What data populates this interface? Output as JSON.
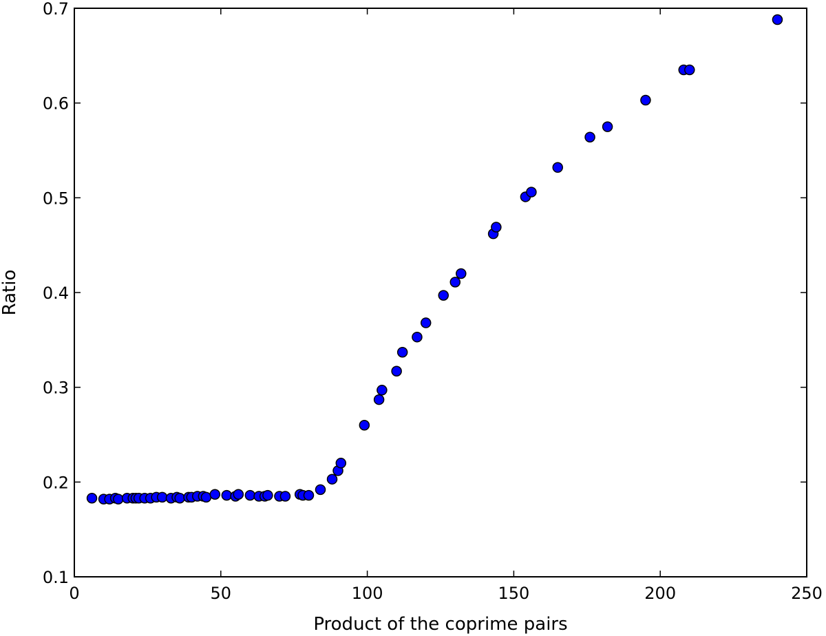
{
  "chart_data": {
    "type": "scatter",
    "title": "",
    "xlabel": "Product of the coprime pairs",
    "ylabel": "Ratio",
    "xlim": [
      0,
      250
    ],
    "ylim": [
      0.1,
      0.7
    ],
    "xticks": [
      0,
      50,
      100,
      150,
      200,
      250
    ],
    "yticks": [
      0.1,
      0.2,
      0.3,
      0.4,
      0.5,
      0.6,
      0.7
    ],
    "xtick_labels": [
      "0",
      "50",
      "100",
      "150",
      "200",
      "250"
    ],
    "ytick_labels": [
      "0.1",
      "0.2",
      "0.3",
      "0.4",
      "0.5",
      "0.6",
      "0.7"
    ],
    "grid": false,
    "marker_color": "#0000ff",
    "marker_edge_color": "#000000",
    "points": [
      {
        "x": 6,
        "y": 0.183
      },
      {
        "x": 10,
        "y": 0.182
      },
      {
        "x": 12,
        "y": 0.182
      },
      {
        "x": 14,
        "y": 0.183
      },
      {
        "x": 15,
        "y": 0.182
      },
      {
        "x": 18,
        "y": 0.183
      },
      {
        "x": 20,
        "y": 0.183
      },
      {
        "x": 21,
        "y": 0.183
      },
      {
        "x": 22,
        "y": 0.183
      },
      {
        "x": 24,
        "y": 0.183
      },
      {
        "x": 26,
        "y": 0.183
      },
      {
        "x": 28,
        "y": 0.184
      },
      {
        "x": 30,
        "y": 0.184
      },
      {
        "x": 33,
        "y": 0.183
      },
      {
        "x": 35,
        "y": 0.184
      },
      {
        "x": 36,
        "y": 0.183
      },
      {
        "x": 39,
        "y": 0.184
      },
      {
        "x": 40,
        "y": 0.184
      },
      {
        "x": 42,
        "y": 0.185
      },
      {
        "x": 44,
        "y": 0.185
      },
      {
        "x": 45,
        "y": 0.184
      },
      {
        "x": 48,
        "y": 0.187
      },
      {
        "x": 52,
        "y": 0.186
      },
      {
        "x": 55,
        "y": 0.185
      },
      {
        "x": 56,
        "y": 0.187
      },
      {
        "x": 60,
        "y": 0.186
      },
      {
        "x": 63,
        "y": 0.185
      },
      {
        "x": 65,
        "y": 0.185
      },
      {
        "x": 66,
        "y": 0.186
      },
      {
        "x": 70,
        "y": 0.185
      },
      {
        "x": 72,
        "y": 0.185
      },
      {
        "x": 77,
        "y": 0.187
      },
      {
        "x": 78,
        "y": 0.186
      },
      {
        "x": 80,
        "y": 0.186
      },
      {
        "x": 84,
        "y": 0.192
      },
      {
        "x": 88,
        "y": 0.203
      },
      {
        "x": 90,
        "y": 0.212
      },
      {
        "x": 91,
        "y": 0.22
      },
      {
        "x": 99,
        "y": 0.26
      },
      {
        "x": 104,
        "y": 0.287
      },
      {
        "x": 105,
        "y": 0.297
      },
      {
        "x": 110,
        "y": 0.317
      },
      {
        "x": 112,
        "y": 0.337
      },
      {
        "x": 117,
        "y": 0.353
      },
      {
        "x": 120,
        "y": 0.368
      },
      {
        "x": 126,
        "y": 0.397
      },
      {
        "x": 130,
        "y": 0.411
      },
      {
        "x": 132,
        "y": 0.42
      },
      {
        "x": 143,
        "y": 0.462
      },
      {
        "x": 144,
        "y": 0.469
      },
      {
        "x": 154,
        "y": 0.501
      },
      {
        "x": 156,
        "y": 0.506
      },
      {
        "x": 165,
        "y": 0.532
      },
      {
        "x": 176,
        "y": 0.564
      },
      {
        "x": 182,
        "y": 0.575
      },
      {
        "x": 195,
        "y": 0.603
      },
      {
        "x": 208,
        "y": 0.635
      },
      {
        "x": 210,
        "y": 0.635
      },
      {
        "x": 240,
        "y": 0.688
      }
    ]
  }
}
